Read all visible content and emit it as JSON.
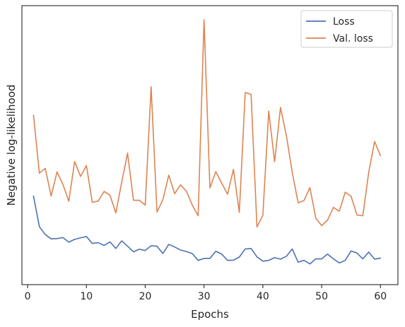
{
  "chart_data": {
    "type": "line",
    "xlabel": "Epochs",
    "ylabel": "Negative log-likelihood",
    "xlim": [
      -0.97,
      62.97
    ],
    "ylim": [
      0,
      1
    ],
    "x_ticks": [
      0,
      10,
      20,
      30,
      40,
      50,
      60
    ],
    "y_ticks_shown": false,
    "grid": false,
    "legend_position": "top-right",
    "x": [
      1,
      2,
      3,
      4,
      5,
      6,
      7,
      8,
      9,
      10,
      11,
      12,
      13,
      14,
      15,
      16,
      17,
      18,
      19,
      20,
      21,
      22,
      23,
      24,
      25,
      26,
      27,
      28,
      29,
      30,
      31,
      32,
      33,
      34,
      35,
      36,
      37,
      38,
      39,
      40,
      41,
      42,
      43,
      44,
      45,
      46,
      47,
      48,
      49,
      50,
      51,
      52,
      53,
      54,
      55,
      56,
      57,
      58,
      59,
      60
    ],
    "series": [
      {
        "name": "Loss",
        "color": "#4c72b0",
        "values": [
          0.305,
          0.184,
          0.153,
          0.136,
          0.137,
          0.141,
          0.123,
          0.134,
          0.14,
          0.145,
          0.118,
          0.121,
          0.11,
          0.124,
          0.098,
          0.128,
          0.107,
          0.085,
          0.095,
          0.09,
          0.109,
          0.107,
          0.078,
          0.114,
          0.104,
          0.092,
          0.086,
          0.078,
          0.051,
          0.059,
          0.059,
          0.087,
          0.076,
          0.051,
          0.052,
          0.064,
          0.096,
          0.098,
          0.065,
          0.048,
          0.051,
          0.062,
          0.056,
          0.067,
          0.096,
          0.044,
          0.051,
          0.037,
          0.057,
          0.057,
          0.076,
          0.057,
          0.041,
          0.051,
          0.088,
          0.08,
          0.057,
          0.084,
          0.056,
          0.06
        ]
      },
      {
        "name": "Val. loss",
        "color": "#dd8452",
        "values": [
          0.624,
          0.395,
          0.414,
          0.305,
          0.4,
          0.351,
          0.284,
          0.441,
          0.382,
          0.425,
          0.28,
          0.285,
          0.323,
          0.308,
          0.238,
          0.36,
          0.474,
          0.288,
          0.288,
          0.269,
          0.736,
          0.242,
          0.29,
          0.387,
          0.314,
          0.349,
          0.324,
          0.269,
          0.227,
          1.0,
          0.337,
          0.401,
          0.356,
          0.312,
          0.41,
          0.24,
          0.713,
          0.706,
          0.183,
          0.229,
          0.64,
          0.44,
          0.654,
          0.543,
          0.398,
          0.278,
          0.287,
          0.338,
          0.218,
          0.188,
          0.21,
          0.26,
          0.245,
          0.32,
          0.304,
          0.23,
          0.227,
          0.398,
          0.52,
          0.464
        ]
      }
    ]
  }
}
